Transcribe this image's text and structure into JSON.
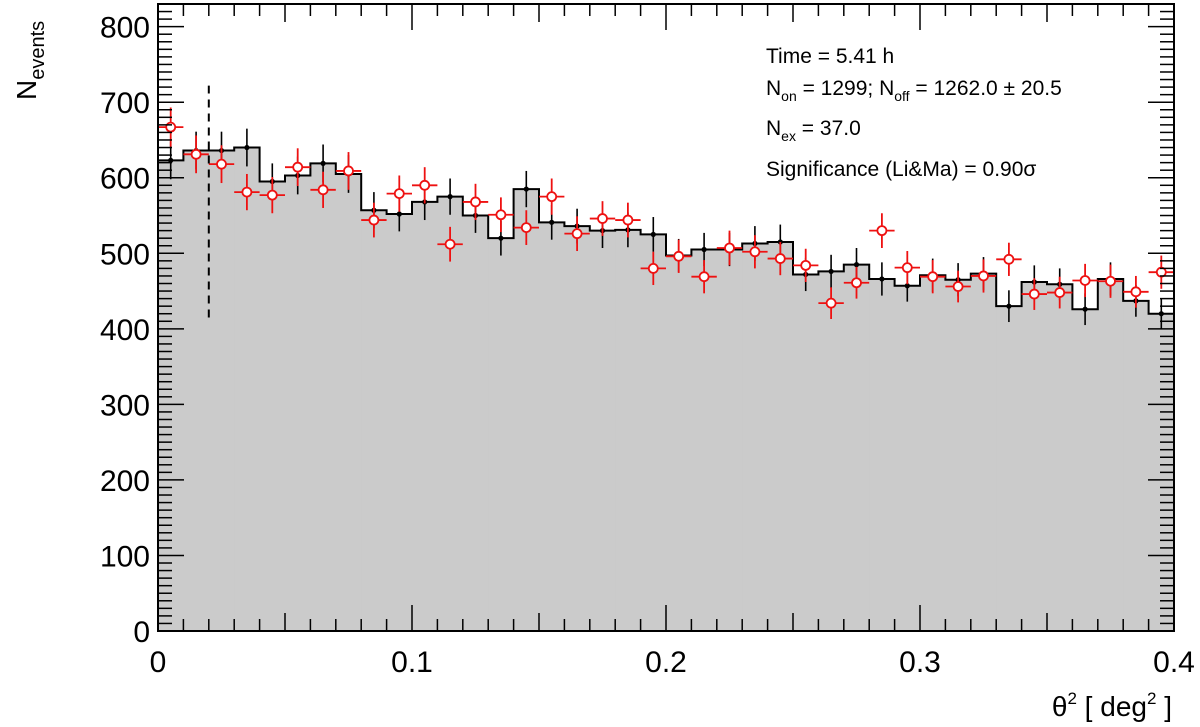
{
  "chart_data": {
    "type": "histogram",
    "xlabel": {
      "main": "θ",
      "sup": "2",
      "pre_unit": " [ deg",
      "unit_sup": "2",
      "post_unit": " ]"
    },
    "ylabel": {
      "main": "N",
      "sub": "events"
    },
    "xlim": [
      0,
      0.4
    ],
    "ylim": [
      0,
      830
    ],
    "x_ticks": [
      "0",
      "0.1",
      "0.2",
      "0.3",
      "0.4"
    ],
    "y_ticks": [
      "0",
      "100",
      "200",
      "300",
      "400",
      "500",
      "600",
      "700",
      "800"
    ],
    "x_tick_values": [
      0,
      0.1,
      0.2,
      0.3,
      0.4
    ],
    "y_tick_values": [
      0,
      100,
      200,
      300,
      400,
      500,
      600,
      700,
      800
    ],
    "bin_width": 0.01,
    "cut_line_x": 0.02,
    "cut_line_range": [
      415,
      722
    ],
    "annotations": {
      "time": "Time = 5.41 h",
      "counts": {
        "non_main": "N",
        "non_sub": "on",
        "non_val": " = 1299; N",
        "noff_sub": "off",
        "noff_val": " = 1262.0 ± 20.5"
      },
      "excess": {
        "main": "N",
        "sub": "ex",
        "val": " = 37.0"
      },
      "significance": "Significance (Li&Ma) = 0.90σ"
    },
    "series": [
      {
        "name": "off",
        "style": "grey filled histogram",
        "values": [
          623,
          636,
          636,
          640,
          595,
          603,
          619,
          605,
          557,
          552,
          568,
          575,
          550,
          520,
          585,
          541,
          536,
          530,
          531,
          525,
          497,
          505,
          505,
          513,
          515,
          472,
          476,
          485,
          466,
          457,
          471,
          465,
          473,
          430,
          462,
          459,
          426,
          466,
          437,
          420
        ],
        "errors": [
          25,
          25,
          25,
          25,
          24,
          25,
          25,
          25,
          24,
          23,
          24,
          24,
          23,
          23,
          24,
          23,
          23,
          23,
          23,
          23,
          22,
          22,
          22,
          23,
          23,
          22,
          22,
          22,
          22,
          21,
          22,
          22,
          22,
          21,
          22,
          21,
          21,
          22,
          21,
          20
        ]
      },
      {
        "name": "on",
        "style": "red open circles with error bars",
        "values": [
          667,
          631,
          618,
          581,
          577,
          614,
          584,
          609,
          544,
          579,
          590,
          512,
          568,
          551,
          534,
          575,
          526,
          546,
          544,
          480,
          496,
          469,
          507,
          502,
          493,
          484,
          434,
          461,
          530,
          481,
          469,
          456,
          470,
          492,
          446,
          448,
          464,
          463,
          449,
          475
        ],
        "errors": [
          26,
          25,
          25,
          24,
          24,
          25,
          24,
          25,
          23,
          24,
          24,
          23,
          24,
          23,
          23,
          24,
          23,
          23,
          23,
          22,
          22,
          22,
          23,
          22,
          22,
          22,
          21,
          21,
          23,
          22,
          22,
          21,
          22,
          22,
          21,
          21,
          22,
          22,
          21,
          22
        ]
      }
    ],
    "colors": {
      "off_fill": "#cbcbcb",
      "off_line": "#000000",
      "on_marker": "#ee1111",
      "frame": "#000000"
    }
  }
}
